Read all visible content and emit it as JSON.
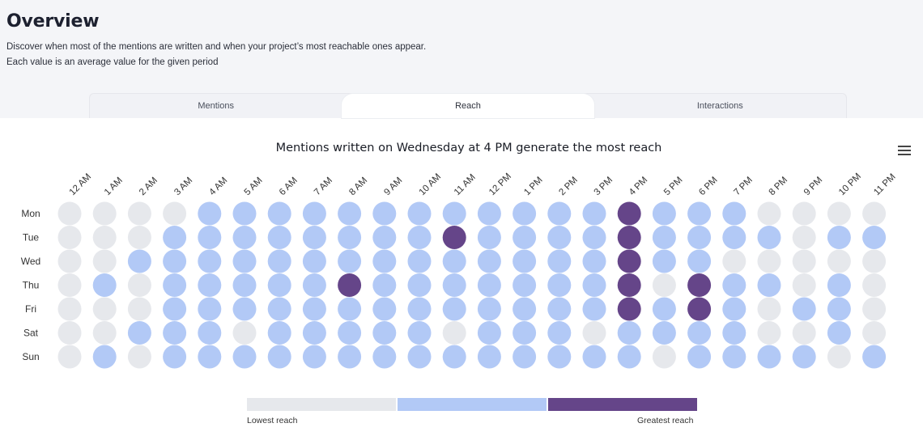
{
  "header": {
    "title": "Overview",
    "description_line1": "Discover when most of the mentions are written and when your project’s most reachable ones appear.",
    "description_line2": "Each value is an average value for the given period"
  },
  "tabs": [
    {
      "label": "Mentions",
      "active": false
    },
    {
      "label": "Reach",
      "active": true
    },
    {
      "label": "Interactions",
      "active": false
    }
  ],
  "menu_icon": "hamburger-menu-icon",
  "chart_data": {
    "type": "heatmap",
    "title": "Mentions written on Wednesday at 4 PM generate the most reach",
    "x": [
      "12 AM",
      "1 AM",
      "2 AM",
      "3 AM",
      "4 AM",
      "5 AM",
      "6 AM",
      "7 AM",
      "8 AM",
      "9 AM",
      "10 AM",
      "11 AM",
      "12 PM",
      "1 PM",
      "2 PM",
      "3 PM",
      "4 PM",
      "5 PM",
      "6 PM",
      "7 PM",
      "8 PM",
      "9 PM",
      "10 PM",
      "11 PM"
    ],
    "y": [
      "Mon",
      "Tue",
      "Wed",
      "Thu",
      "Fri",
      "Sat",
      "Sun"
    ],
    "levels": [
      "low",
      "medium",
      "high"
    ],
    "values": [
      [
        0,
        0,
        0,
        0,
        1,
        1,
        1,
        1,
        1,
        1,
        1,
        1,
        1,
        1,
        1,
        1,
        2,
        1,
        1,
        1,
        0,
        0,
        0,
        0
      ],
      [
        0,
        0,
        0,
        1,
        1,
        1,
        1,
        1,
        1,
        1,
        1,
        2,
        1,
        1,
        1,
        1,
        2,
        1,
        1,
        1,
        1,
        0,
        1,
        1
      ],
      [
        0,
        0,
        1,
        1,
        1,
        1,
        1,
        1,
        1,
        1,
        1,
        1,
        1,
        1,
        1,
        1,
        2,
        1,
        1,
        0,
        0,
        0,
        0,
        0
      ],
      [
        0,
        1,
        0,
        1,
        1,
        1,
        1,
        1,
        2,
        1,
        1,
        1,
        1,
        1,
        1,
        1,
        2,
        0,
        2,
        1,
        1,
        0,
        1,
        0
      ],
      [
        0,
        0,
        0,
        1,
        1,
        1,
        1,
        1,
        1,
        1,
        1,
        1,
        1,
        1,
        1,
        1,
        2,
        1,
        2,
        1,
        0,
        1,
        1,
        0
      ],
      [
        0,
        0,
        1,
        1,
        1,
        0,
        1,
        1,
        1,
        1,
        1,
        0,
        1,
        1,
        1,
        0,
        1,
        1,
        1,
        1,
        0,
        0,
        1,
        0
      ],
      [
        0,
        1,
        0,
        1,
        1,
        1,
        1,
        1,
        1,
        1,
        1,
        1,
        1,
        1,
        1,
        1,
        1,
        0,
        1,
        1,
        1,
        1,
        0,
        1
      ]
    ],
    "colors": {
      "low": "#e6e8ec",
      "medium": "#b2c9f6",
      "high": "#654589"
    },
    "legend": {
      "low_label": "Lowest reach",
      "high_label": "Greatest reach"
    }
  }
}
